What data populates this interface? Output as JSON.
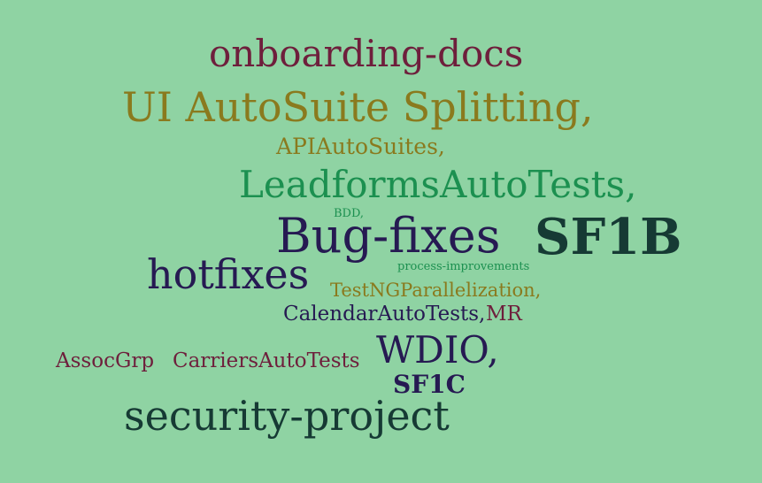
{
  "background": "#8fd3a3",
  "words": {
    "onboarding": {
      "text": "onboarding-docs",
      "color": "#6e1f3c"
    },
    "uiauto": {
      "text": "UI AutoSuite Splitting,",
      "color": "#8a7a1e"
    },
    "api": {
      "text": "APIAutoSuites,",
      "color": "#8a7a1e"
    },
    "leadforms": {
      "text": "LeadformsAutoTests,",
      "color": "#1c9050"
    },
    "bdd": {
      "text": "BDD,",
      "color": "#1c9050"
    },
    "bugfixes": {
      "text": "Bug-fixes",
      "color": "#261a52"
    },
    "sf1b": {
      "text": "SF1B",
      "color": "#163a34"
    },
    "hotfixes": {
      "text": "hotfixes",
      "color": "#261a52"
    },
    "process": {
      "text": "process-improvements",
      "color": "#1c9050"
    },
    "testng": {
      "text": "TestNGParallelization,",
      "color": "#8a7a1e"
    },
    "calendar": {
      "text": "CalendarAutoTests,",
      "color": "#261a52"
    },
    "mr": {
      "text": "MR",
      "color": "#6e1f3c"
    },
    "wdio": {
      "text": "WDIO,",
      "color": "#261a52"
    },
    "assoc": {
      "text": "AssocGrp",
      "color": "#6e1f3c"
    },
    "carriers": {
      "text": "CarriersAutoTests",
      "color": "#6e1f3c"
    },
    "sf1c": {
      "text": "SF1C",
      "color": "#261a52"
    },
    "security": {
      "text": "security-project",
      "color": "#163a34"
    }
  }
}
